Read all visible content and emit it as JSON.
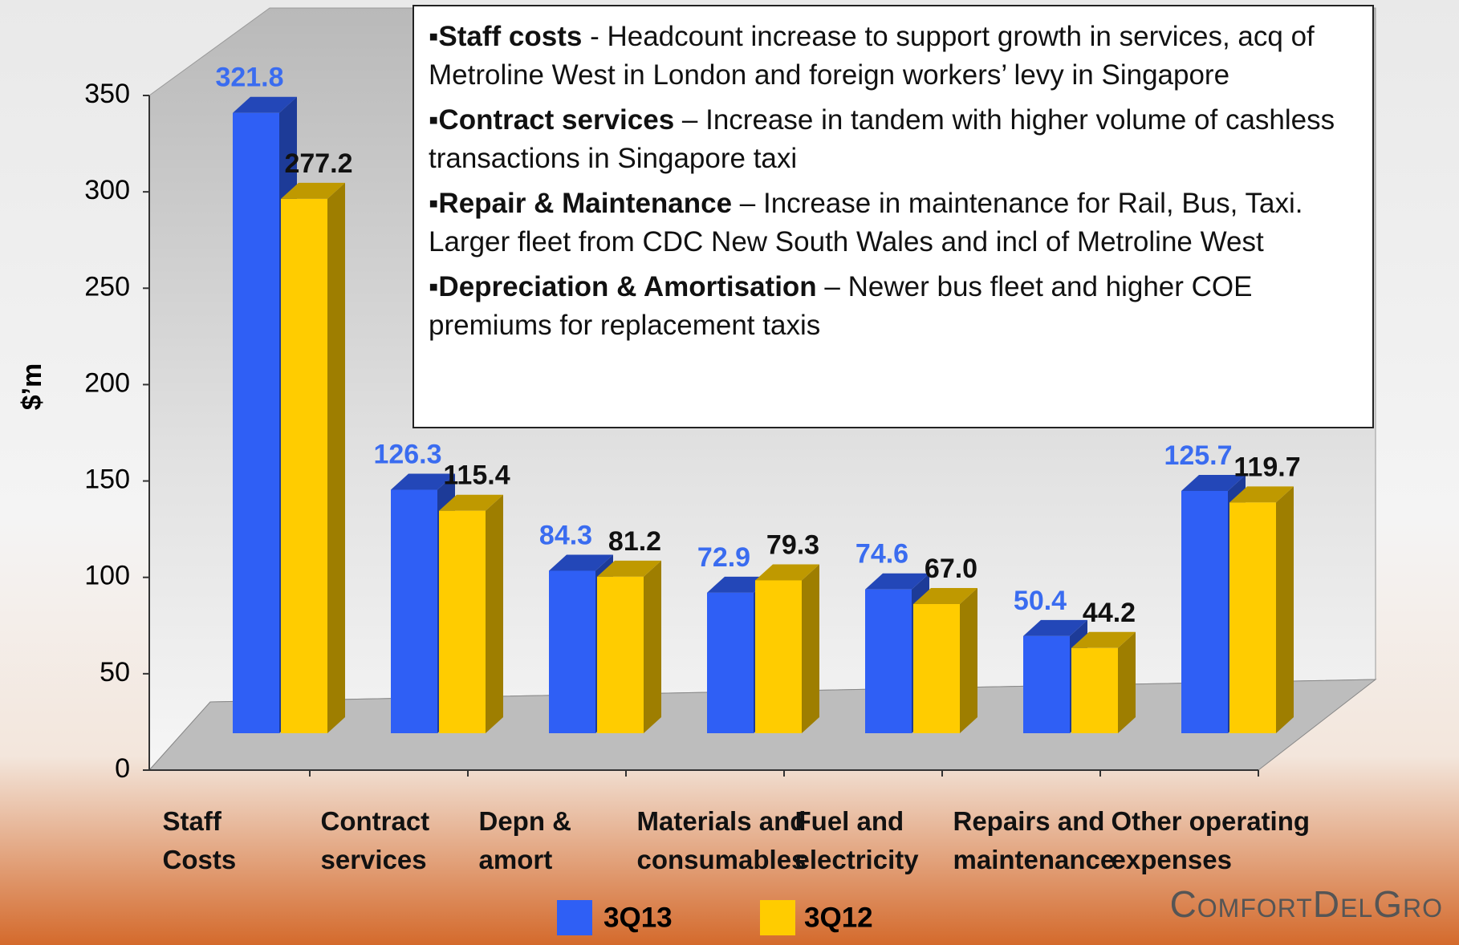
{
  "chart_data": {
    "type": "bar3d",
    "y_label": "$’m",
    "categories": [
      "Staff\nCosts",
      "Contract\nservices",
      "Depn &\namort",
      "Materials and\nconsumables",
      "Fuel and\nelectricity",
      "Repairs and\nmaintenance",
      "Other operating\nexpenses"
    ],
    "series": [
      {
        "name": "3Q13",
        "color": "#2f5ff5",
        "label_color": "#3a6cf0",
        "values": [
          321.8,
          126.3,
          84.3,
          72.9,
          74.6,
          50.4,
          125.7
        ]
      },
      {
        "name": "3Q12",
        "color": "#ffcc00",
        "label_color": "#111111",
        "values": [
          277.2,
          115.4,
          81.2,
          79.3,
          67.0,
          44.2,
          119.7
        ],
        "value_labels": [
          "277.2",
          "115.4",
          "81.2",
          "79.3",
          "67.0",
          "44.2",
          "119.7"
        ]
      }
    ],
    "ylim": [
      0,
      350
    ],
    "yticks": [
      0,
      50,
      100,
      150,
      200,
      250,
      300,
      350
    ],
    "annotations": [
      {
        "heading": "Staff costs",
        "text": " - Headcount increase to support growth in services, acq of Metroline West in London and foreign workers’ levy in Singapore"
      },
      {
        "heading": "Contract services",
        "text": " – Increase in tandem with higher volume of cashless transactions in Singapore taxi"
      },
      {
        "heading": "Repair & Maintenance",
        "text": " – Increase in maintenance for Rail, Bus, Taxi. Larger fleet from CDC New South Wales and incl of Metroline West"
      },
      {
        "heading": "Depreciation & Amortisation",
        "text": " – Newer bus fleet and higher COE premiums for replacement taxis"
      }
    ],
    "logo": "ComfortDelGro"
  }
}
